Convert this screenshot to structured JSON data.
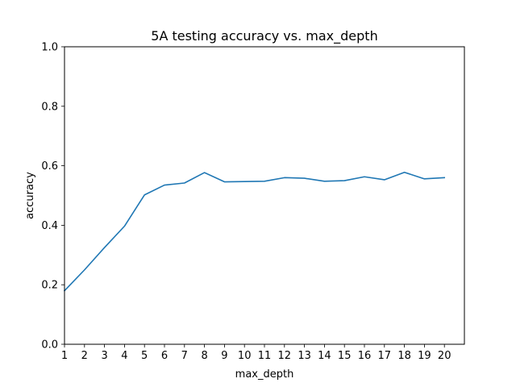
{
  "chart_data": {
    "type": "line",
    "title": "5A testing accuracy vs. max_depth",
    "xlabel": "max_depth",
    "ylabel": "accuracy",
    "x": [
      1,
      2,
      3,
      4,
      5,
      6,
      7,
      8,
      9,
      10,
      11,
      12,
      13,
      14,
      15,
      16,
      17,
      18,
      19,
      20
    ],
    "xticks": [
      "1",
      "2",
      "3",
      "4",
      "5",
      "6",
      "7",
      "8",
      "9",
      "10",
      "11",
      "12",
      "13",
      "14",
      "15",
      "16",
      "17",
      "18",
      "19",
      "20"
    ],
    "yticks": [
      "0.0",
      "0.2",
      "0.4",
      "0.6",
      "0.8",
      "1.0"
    ],
    "ytick_values": [
      0.0,
      0.2,
      0.4,
      0.6,
      0.8,
      1.0
    ],
    "xlim": [
      1,
      21
    ],
    "ylim": [
      0,
      1.0
    ],
    "grid": false,
    "series": [
      {
        "color": "#1f77b4",
        "values": [
          0.18,
          0.25,
          0.325,
          0.397,
          0.502,
          0.535,
          0.542,
          0.577,
          0.546,
          0.547,
          0.548,
          0.56,
          0.558,
          0.548,
          0.55,
          0.563,
          0.553,
          0.578,
          0.556,
          0.56
        ]
      }
    ]
  }
}
